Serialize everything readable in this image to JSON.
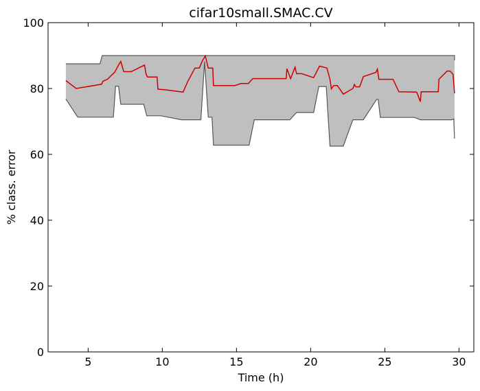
{
  "chart_data": {
    "type": "area",
    "title": "cifar10small.SMAC.CV",
    "xlabel": "Time (h)",
    "ylabel": "% class. error",
    "xlim": [
      2.3,
      31
    ],
    "ylim": [
      0,
      100
    ],
    "xticks": [
      5,
      10,
      15,
      20,
      25,
      30
    ],
    "yticks": [
      0,
      20,
      40,
      60,
      80,
      100
    ],
    "grid": false,
    "legend": "none",
    "series": [
      {
        "role": "band-upper",
        "color": "#555555",
        "points": [
          [
            3.5,
            87.5
          ],
          [
            5.8,
            87.5
          ],
          [
            5.95,
            90.0
          ],
          [
            29.7,
            90.0
          ],
          [
            29.7,
            88.5
          ]
        ]
      },
      {
        "role": "band-lower",
        "color": "#555555",
        "points": [
          [
            3.5,
            76.8
          ],
          [
            4.3,
            71.3
          ],
          [
            6.7,
            71.3
          ],
          [
            6.85,
            80.7
          ],
          [
            7.05,
            80.7
          ],
          [
            7.2,
            75.2
          ],
          [
            8.75,
            75.2
          ],
          [
            8.95,
            71.7
          ],
          [
            9.9,
            71.7
          ],
          [
            11.3,
            70.5
          ],
          [
            12.6,
            70.5
          ],
          [
            12.85,
            88.2
          ],
          [
            13.0,
            78.0
          ],
          [
            13.1,
            71.3
          ],
          [
            13.35,
            71.3
          ],
          [
            13.45,
            62.8
          ],
          [
            15.85,
            62.8
          ],
          [
            16.2,
            70.5
          ],
          [
            18.6,
            70.5
          ],
          [
            19.05,
            72.7
          ],
          [
            20.2,
            72.7
          ],
          [
            20.55,
            80.6
          ],
          [
            21.05,
            80.6
          ],
          [
            21.3,
            62.5
          ],
          [
            22.2,
            62.5
          ],
          [
            22.85,
            70.5
          ],
          [
            23.55,
            70.5
          ],
          [
            24.45,
            76.7
          ],
          [
            24.55,
            76.7
          ],
          [
            24.7,
            71.2
          ],
          [
            27.0,
            71.2
          ],
          [
            27.4,
            70.5
          ],
          [
            29.5,
            70.5
          ],
          [
            29.65,
            70.7
          ],
          [
            29.7,
            64.8
          ]
        ]
      },
      {
        "role": "mean",
        "color": "#cc0000",
        "points": [
          [
            3.5,
            82.4
          ],
          [
            4.2,
            80.0
          ],
          [
            5.9,
            81.3
          ],
          [
            6.0,
            82.2
          ],
          [
            6.3,
            82.8
          ],
          [
            6.8,
            85.0
          ],
          [
            7.1,
            87.5
          ],
          [
            7.2,
            88.2
          ],
          [
            7.4,
            85.1
          ],
          [
            7.9,
            85.1
          ],
          [
            8.8,
            87.1
          ],
          [
            8.9,
            84.5
          ],
          [
            9.0,
            83.5
          ],
          [
            9.65,
            83.5
          ],
          [
            9.7,
            79.8
          ],
          [
            10.2,
            79.6
          ],
          [
            11.4,
            78.9
          ],
          [
            11.7,
            82.0
          ],
          [
            12.2,
            86.2
          ],
          [
            12.5,
            86.2
          ],
          [
            12.7,
            88.4
          ],
          [
            12.9,
            89.9
          ],
          [
            13.1,
            86.2
          ],
          [
            13.4,
            86.2
          ],
          [
            13.45,
            80.9
          ],
          [
            14.9,
            80.9
          ],
          [
            15.3,
            81.5
          ],
          [
            15.8,
            81.5
          ],
          [
            16.1,
            83.0
          ],
          [
            18.35,
            83.0
          ],
          [
            18.4,
            86.0
          ],
          [
            18.65,
            83.0
          ],
          [
            18.95,
            86.5
          ],
          [
            19.05,
            84.5
          ],
          [
            19.4,
            84.5
          ],
          [
            20.2,
            83.3
          ],
          [
            20.6,
            86.8
          ],
          [
            21.1,
            86.2
          ],
          [
            21.3,
            82.8
          ],
          [
            21.4,
            79.9
          ],
          [
            21.55,
            80.9
          ],
          [
            21.8,
            80.9
          ],
          [
            22.2,
            78.3
          ],
          [
            22.85,
            80.0
          ],
          [
            22.95,
            81.2
          ],
          [
            23.05,
            80.5
          ],
          [
            23.3,
            80.5
          ],
          [
            23.55,
            83.6
          ],
          [
            24.4,
            84.9
          ],
          [
            24.5,
            85.9
          ],
          [
            24.6,
            82.8
          ],
          [
            25.55,
            82.8
          ],
          [
            25.95,
            79.0
          ],
          [
            27.15,
            78.9
          ],
          [
            27.4,
            76.0
          ],
          [
            27.45,
            79.0
          ],
          [
            28.6,
            79.0
          ],
          [
            28.65,
            82.8
          ],
          [
            29.2,
            85.3
          ],
          [
            29.4,
            85.3
          ],
          [
            29.6,
            84.3
          ],
          [
            29.7,
            78.5
          ]
        ]
      }
    ]
  }
}
